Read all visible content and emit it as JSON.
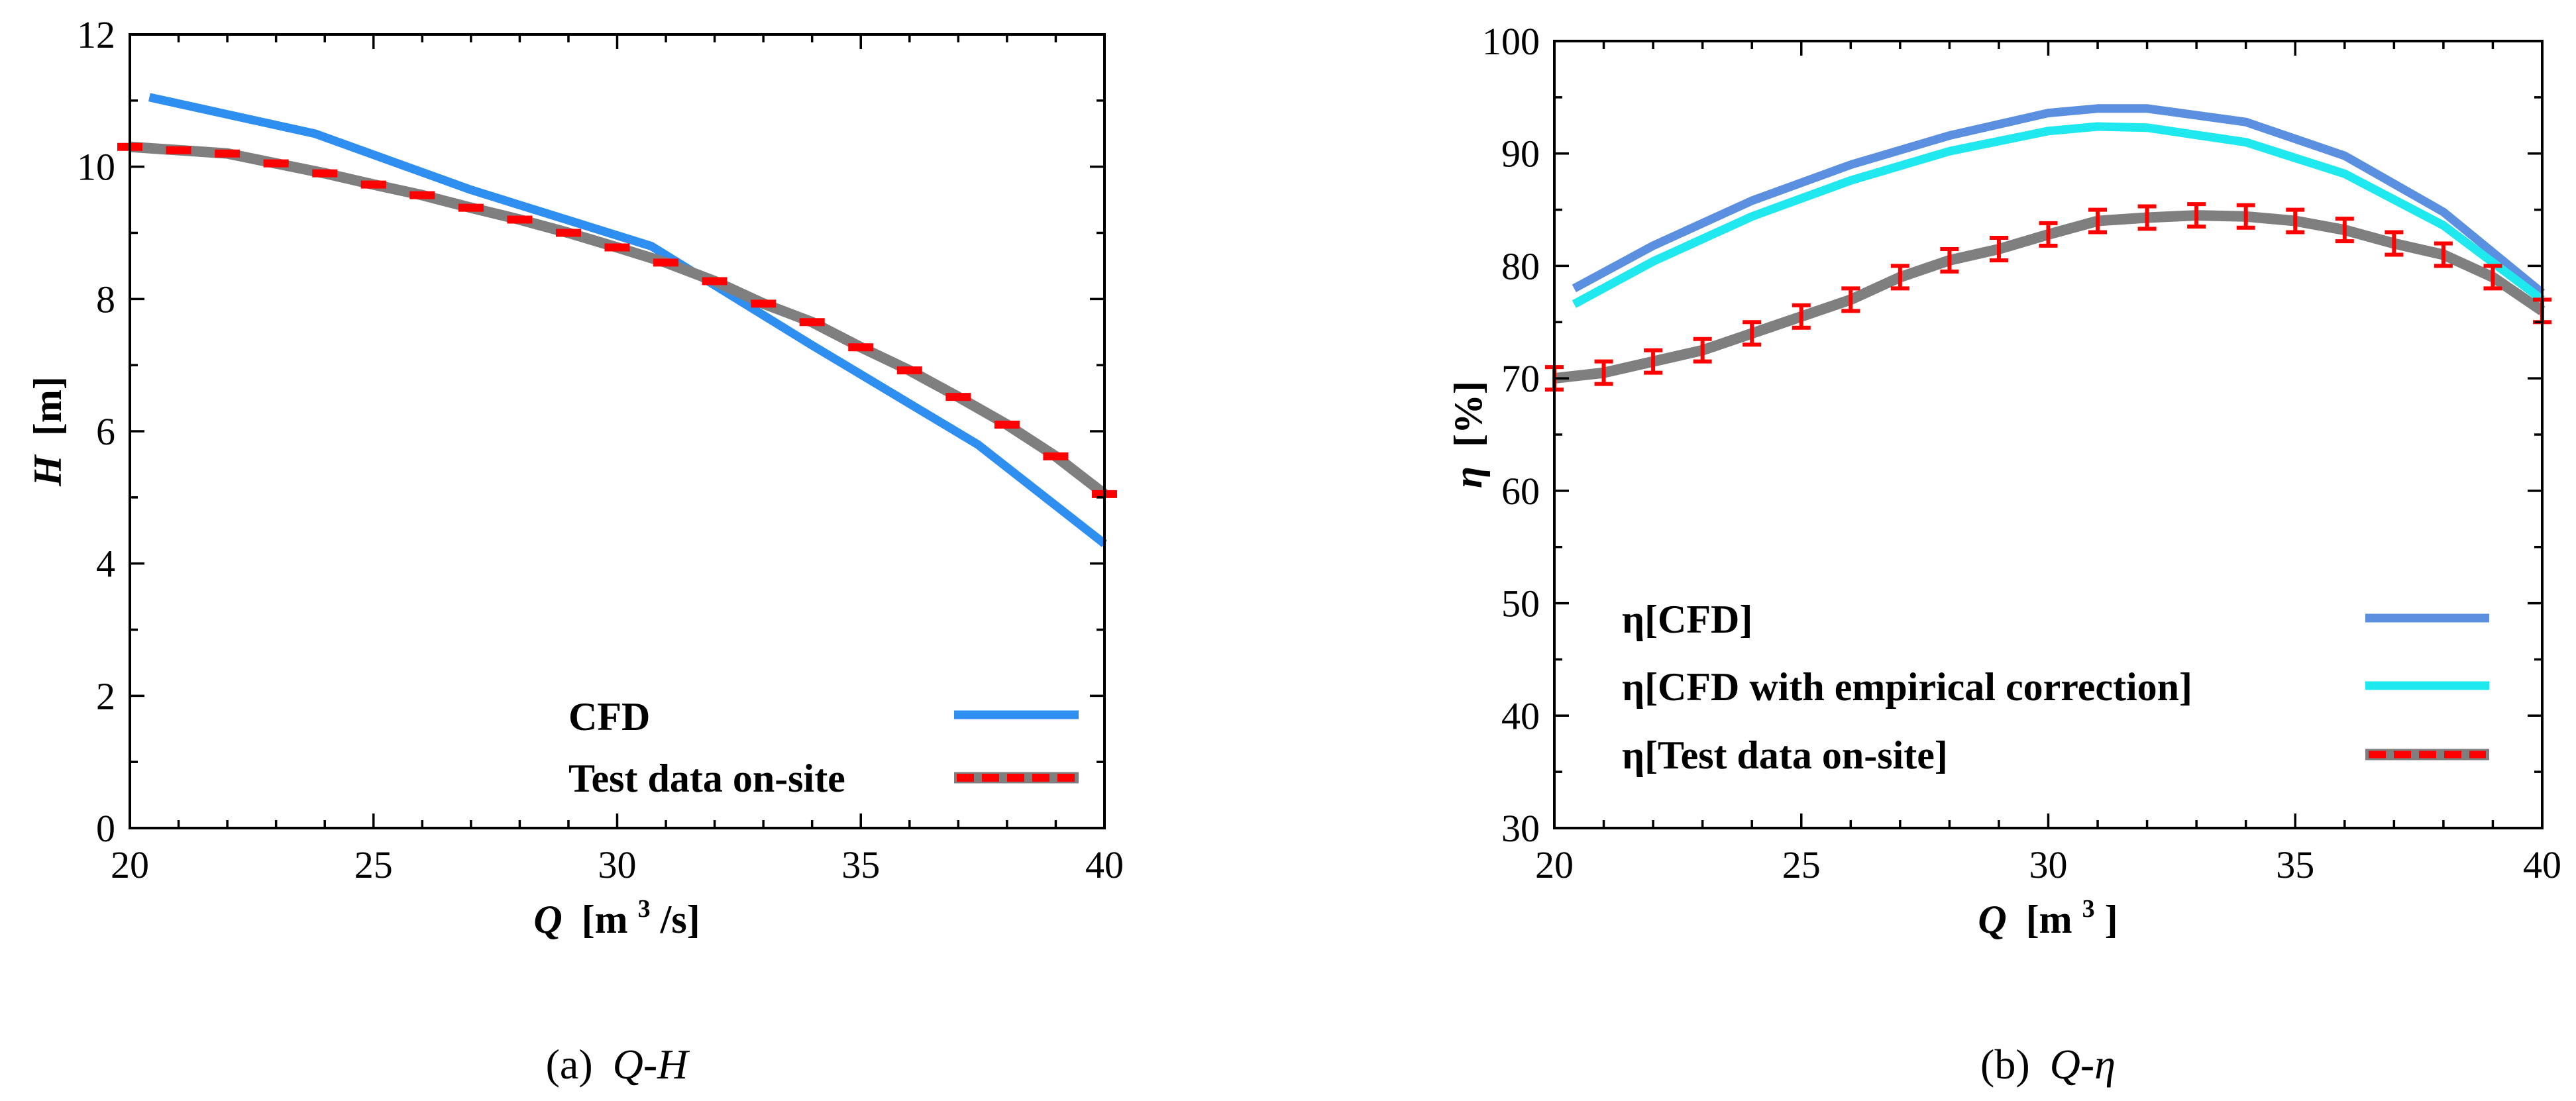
{
  "chart_data": [
    {
      "type": "line",
      "panel": "a",
      "caption_label": "(a)",
      "caption_text": "Q-H",
      "xlabel_sym": "Q",
      "xlabel_unit_pre": "[m",
      "xlabel_sup": "3",
      "xlabel_unit_post": "/s]",
      "ylabel_sym": "H",
      "ylabel_unit": "[m]",
      "xlim": [
        20,
        40
      ],
      "ylim": [
        0,
        12
      ],
      "xticks": [
        "20",
        "25",
        "30",
        "35",
        "40"
      ],
      "yticks": [
        "0",
        "2",
        "4",
        "6",
        "8",
        "10",
        "12"
      ],
      "legend_position": "bottom-right",
      "series": [
        {
          "name": "CFD",
          "color": "#2e8ff0",
          "style": "solid",
          "x": [
            20.4,
            23.8,
            27.0,
            30.7,
            34.0,
            37.4,
            40.0
          ],
          "y": [
            11.05,
            10.5,
            9.65,
            8.8,
            7.3,
            5.8,
            4.3
          ]
        },
        {
          "name": "Test data on-site",
          "color": "#7f7f7f",
          "marker_color": "#ff0000",
          "style": "line-with-dash-markers",
          "x": [
            20.0,
            21.0,
            22.0,
            23.0,
            24.0,
            25.0,
            26.0,
            27.0,
            28.0,
            29.0,
            30.0,
            31.0,
            32.0,
            33.0,
            34.0,
            35.0,
            36.0,
            37.0,
            38.0,
            39.0,
            40.0
          ],
          "y": [
            10.3,
            10.25,
            10.2,
            10.05,
            9.9,
            9.73,
            9.57,
            9.38,
            9.2,
            9.0,
            8.78,
            8.55,
            8.27,
            7.93,
            7.65,
            7.27,
            6.92,
            6.52,
            6.1,
            5.62,
            5.05
          ]
        }
      ]
    },
    {
      "type": "line",
      "panel": "b",
      "caption_label": "(b)",
      "caption_text": "Q-η",
      "xlabel_sym": "Q",
      "xlabel_unit_pre": "[m",
      "xlabel_sup": "3",
      "xlabel_unit_post": "]",
      "ylabel_sym": "η",
      "ylabel_unit": "[%]",
      "xlim": [
        20,
        40
      ],
      "ylim": [
        30,
        100
      ],
      "xticks": [
        "20",
        "25",
        "30",
        "35",
        "40"
      ],
      "yticks": [
        "30",
        "40",
        "50",
        "60",
        "70",
        "80",
        "90",
        "100"
      ],
      "legend_position": "bottom-right",
      "series": [
        {
          "name": "η[CFD]",
          "color": "#5b8fe0",
          "style": "solid",
          "x": [
            20.4,
            22.0,
            24.0,
            26.0,
            28.0,
            30.0,
            31.0,
            32.0,
            34.0,
            36.0,
            38.0,
            40.0
          ],
          "y": [
            78.0,
            81.8,
            85.8,
            89.0,
            91.6,
            93.6,
            94.0,
            94.0,
            92.8,
            89.8,
            84.8,
            77.6
          ]
        },
        {
          "name": "η[CFD with empirical correction]",
          "color": "#1fe9ee",
          "style": "solid",
          "x": [
            20.4,
            22.0,
            24.0,
            26.0,
            28.0,
            30.0,
            31.0,
            32.0,
            34.0,
            36.0,
            38.0,
            40.0
          ],
          "y": [
            76.6,
            80.4,
            84.4,
            87.6,
            90.2,
            92.0,
            92.4,
            92.3,
            91.0,
            88.2,
            83.6,
            77.0
          ]
        },
        {
          "name": "η[Test data on-site]",
          "color": "#7f7f7f",
          "marker_color": "#ff0000",
          "style": "line-with-error-bars",
          "error": 1.0,
          "x": [
            20.0,
            21.0,
            22.0,
            23.0,
            24.0,
            25.0,
            26.0,
            27.0,
            28.0,
            29.0,
            30.0,
            31.0,
            32.0,
            33.0,
            34.0,
            35.0,
            36.0,
            37.0,
            38.0,
            39.0,
            40.0
          ],
          "y": [
            70.0,
            70.5,
            71.5,
            72.5,
            74.0,
            75.5,
            77.0,
            79.0,
            80.5,
            81.5,
            82.8,
            84.0,
            84.3,
            84.5,
            84.4,
            84.0,
            83.2,
            82.0,
            81.0,
            79.0,
            76.0
          ]
        }
      ]
    }
  ]
}
